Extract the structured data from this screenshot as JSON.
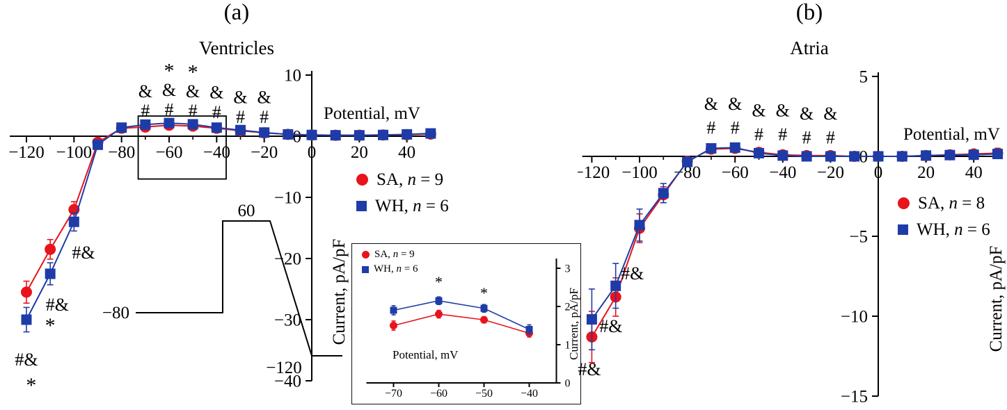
{
  "colors": {
    "sa": "#e8131c",
    "wh": "#1e3ca8",
    "axis": "#000000"
  },
  "panels": {
    "a": {
      "letter": "(a)"
    },
    "b": {
      "letter": "(b)"
    }
  },
  "chart_data": [
    {
      "id": "ventricles",
      "type": "line",
      "title": "Ventricles",
      "xlabel": "Potential, mV",
      "ylabel": "Current, pA/pF",
      "xlim": [
        -127,
        52
      ],
      "ylim": [
        -40,
        10
      ],
      "x_ticks": [
        -120,
        -100,
        -80,
        -60,
        -40,
        -20,
        0,
        20,
        40
      ],
      "x_minor_ticks": [
        -110,
        -90,
        -70,
        -50,
        -30,
        -10,
        10,
        30
      ],
      "y_ticks": [
        10,
        0,
        -10,
        -20,
        -30,
        -40
      ],
      "x": [
        -120,
        -110,
        -100,
        -90,
        -80,
        -70,
        -60,
        -50,
        -40,
        -30,
        -20,
        -10,
        0,
        10,
        20,
        30,
        40,
        50
      ],
      "series": [
        {
          "name": "SA",
          "n": 9,
          "marker": "circle",
          "color": "sa",
          "values": [
            -25.5,
            -18.5,
            -12,
            -1,
            1.3,
            1.5,
            1.8,
            1.65,
            1.3,
            0.9,
            0.55,
            0.3,
            0.2,
            0.15,
            0.15,
            0.2,
            0.25,
            0.35
          ],
          "errors": [
            1.8,
            1.6,
            1.3,
            0.6,
            0.3,
            0.25,
            0.2,
            0.2,
            0.18,
            0.15,
            0.12,
            0.1,
            0.08,
            0.08,
            0.08,
            0.1,
            0.12,
            0.15
          ]
        },
        {
          "name": "WH",
          "n": 6,
          "marker": "square",
          "color": "wh",
          "values": [
            -30,
            -22.5,
            -14,
            -1.4,
            1.4,
            1.9,
            2.15,
            1.95,
            1.4,
            1,
            0.6,
            0.3,
            0.2,
            0.15,
            0.15,
            0.2,
            0.3,
            0.45
          ],
          "errors": [
            2,
            1.8,
            1.5,
            0.7,
            0.35,
            0.3,
            0.25,
            0.2,
            0.18,
            0.15,
            0.12,
            0.1,
            0.08,
            0.08,
            0.08,
            0.1,
            0.12,
            0.18
          ]
        }
      ],
      "legend": [
        {
          "pre": "SA, ",
          "n": "n",
          "post": " = 9",
          "marker": "circle",
          "color": "sa"
        },
        {
          "pre": "WH, ",
          "n": "n",
          "post": " = 6",
          "marker": "square",
          "color": "wh"
        }
      ],
      "annotations": [
        {
          "x": -70,
          "y": 4.2,
          "text": "#"
        },
        {
          "x": -70,
          "y": 7.4,
          "text": "&"
        },
        {
          "x": -60,
          "y": 4.4,
          "text": "#"
        },
        {
          "x": -60,
          "y": 7.6,
          "text": "&"
        },
        {
          "x": -60,
          "y": 10.6,
          "text": "*",
          "size": 30
        },
        {
          "x": -50,
          "y": 4.2,
          "text": "#"
        },
        {
          "x": -50,
          "y": 7.4,
          "text": "&"
        },
        {
          "x": -50,
          "y": 10.4,
          "text": "*",
          "size": 30
        },
        {
          "x": -40,
          "y": 4.0,
          "text": "#"
        },
        {
          "x": -40,
          "y": 7.2,
          "text": "&"
        },
        {
          "x": -30,
          "y": 3.2,
          "text": "#"
        },
        {
          "x": -30,
          "y": 6.4,
          "text": "&"
        },
        {
          "x": -20,
          "y": 3.2,
          "text": "#"
        },
        {
          "x": -20,
          "y": 6.4,
          "text": "&"
        },
        {
          "x": -96,
          "y": -19,
          "text": "#&"
        },
        {
          "x": -107,
          "y": -27.5,
          "text": "#&"
        },
        {
          "x": -110,
          "y": -31,
          "text": "*",
          "size": 30
        },
        {
          "x": -120,
          "y": -36.5,
          "text": "#&"
        },
        {
          "x": -118,
          "y": -40.8,
          "text": "*",
          "size": 30
        }
      ],
      "zoom_box": {
        "x1": -73,
        "x2": -36,
        "y1": -7,
        "y2": 3.3
      },
      "protocol": {
        "step_label": "60",
        "hold_label": "−80",
        "ramp_label": "−120"
      }
    },
    {
      "id": "ventricles_inset",
      "type": "line",
      "title": "",
      "xlabel": "Potential, mV",
      "ylabel": "Current, pA/pF",
      "xlim": [
        -76,
        -34
      ],
      "ylim": [
        0,
        3
      ],
      "x_ticks": [
        -70,
        -60,
        -50,
        -40
      ],
      "y_ticks": [
        0,
        1,
        2,
        3
      ],
      "x": [
        -70,
        -60,
        -50,
        -40
      ],
      "series": [
        {
          "name": "SA",
          "n": 9,
          "marker": "circle",
          "color": "sa",
          "values": [
            1.5,
            1.8,
            1.65,
            1.3
          ],
          "errors": [
            0.12,
            0.1,
            0.08,
            0.1
          ]
        },
        {
          "name": "WH",
          "n": 6,
          "marker": "square",
          "color": "wh",
          "values": [
            1.9,
            2.15,
            1.95,
            1.4
          ],
          "errors": [
            0.12,
            0.1,
            0.1,
            0.12
          ]
        }
      ],
      "legend": [
        {
          "pre": "SA, ",
          "n": "n",
          "post": " = 9",
          "marker": "circle",
          "color": "sa"
        },
        {
          "pre": "WH, ",
          "n": "n",
          "post": " = 6",
          "marker": "square",
          "color": "wh"
        }
      ],
      "annotations": [
        {
          "x": -60,
          "y": 2.62,
          "text": "*",
          "size": 22
        },
        {
          "x": -50,
          "y": 2.33,
          "text": "*",
          "size": 22
        }
      ]
    },
    {
      "id": "atria",
      "type": "line",
      "title": "Atria",
      "xlabel": "Potential, mV",
      "ylabel": "Current, pA/pF",
      "xlim": [
        -124,
        52
      ],
      "ylim": [
        -15,
        5
      ],
      "x_ticks": [
        -120,
        -100,
        -80,
        -60,
        -40,
        -20,
        0,
        20,
        40
      ],
      "x_minor_ticks": [
        -110,
        -90,
        -70,
        -50,
        -30,
        -10,
        10,
        30
      ],
      "y_ticks": [
        5,
        0,
        -5,
        -10,
        -15
      ],
      "x": [
        -120,
        -110,
        -100,
        -90,
        -80,
        -70,
        -60,
        -50,
        -40,
        -30,
        -20,
        -10,
        0,
        10,
        20,
        30,
        40,
        50
      ],
      "series": [
        {
          "name": "SA",
          "n": 8,
          "marker": "circle",
          "color": "sa",
          "values": [
            -11.3,
            -8.8,
            -4.5,
            -2.4,
            -0.3,
            0.45,
            0.5,
            0.25,
            0.1,
            0.05,
            0.05,
            0,
            0,
            0,
            0.05,
            0.1,
            0.15,
            0.2
          ],
          "errors": [
            1.6,
            1.2,
            0.9,
            0.5,
            0.25,
            0.2,
            0.15,
            0.12,
            0.1,
            0.1,
            0.08,
            0.08,
            0.08,
            0.08,
            0.08,
            0.1,
            0.12,
            0.3
          ]
        },
        {
          "name": "WH",
          "n": 6,
          "marker": "square",
          "color": "wh",
          "values": [
            -10.2,
            -8.1,
            -4.3,
            -2.3,
            -0.35,
            0.5,
            0.55,
            0.2,
            0.05,
            0,
            0,
            0,
            0,
            0,
            0.05,
            0.08,
            0.1,
            0.15
          ],
          "errors": [
            1.9,
            1.4,
            1,
            0.6,
            0.3,
            0.25,
            0.2,
            0.15,
            0.1,
            0.1,
            0.08,
            0.08,
            0.08,
            0.08,
            0.08,
            0.1,
            0.1,
            0.2
          ]
        }
      ],
      "legend": [
        {
          "pre": "SA, ",
          "n": "n",
          "post": " = 8",
          "marker": "circle",
          "color": "sa"
        },
        {
          "pre": "WH, ",
          "n": "n",
          "post": " = 6",
          "marker": "square",
          "color": "wh"
        }
      ],
      "annotations": [
        {
          "x": -70,
          "y": 1.8,
          "text": "#"
        },
        {
          "x": -70,
          "y": 3.3,
          "text": "&"
        },
        {
          "x": -60,
          "y": 1.8,
          "text": "#"
        },
        {
          "x": -60,
          "y": 3.3,
          "text": "&"
        },
        {
          "x": -50,
          "y": 1.4,
          "text": "#"
        },
        {
          "x": -50,
          "y": 2.9,
          "text": "&"
        },
        {
          "x": -40,
          "y": 1.4,
          "text": "#"
        },
        {
          "x": -40,
          "y": 2.9,
          "text": "&"
        },
        {
          "x": -30,
          "y": 1.2,
          "text": "#"
        },
        {
          "x": -30,
          "y": 2.7,
          "text": "&"
        },
        {
          "x": -20,
          "y": 1.2,
          "text": "#"
        },
        {
          "x": -20,
          "y": 2.7,
          "text": "&"
        },
        {
          "x": -103,
          "y": -7.3,
          "text": "#&"
        },
        {
          "x": -112,
          "y": -10.6,
          "text": "#&"
        },
        {
          "x": -121,
          "y": -13.3,
          "text": "#&"
        }
      ]
    }
  ]
}
